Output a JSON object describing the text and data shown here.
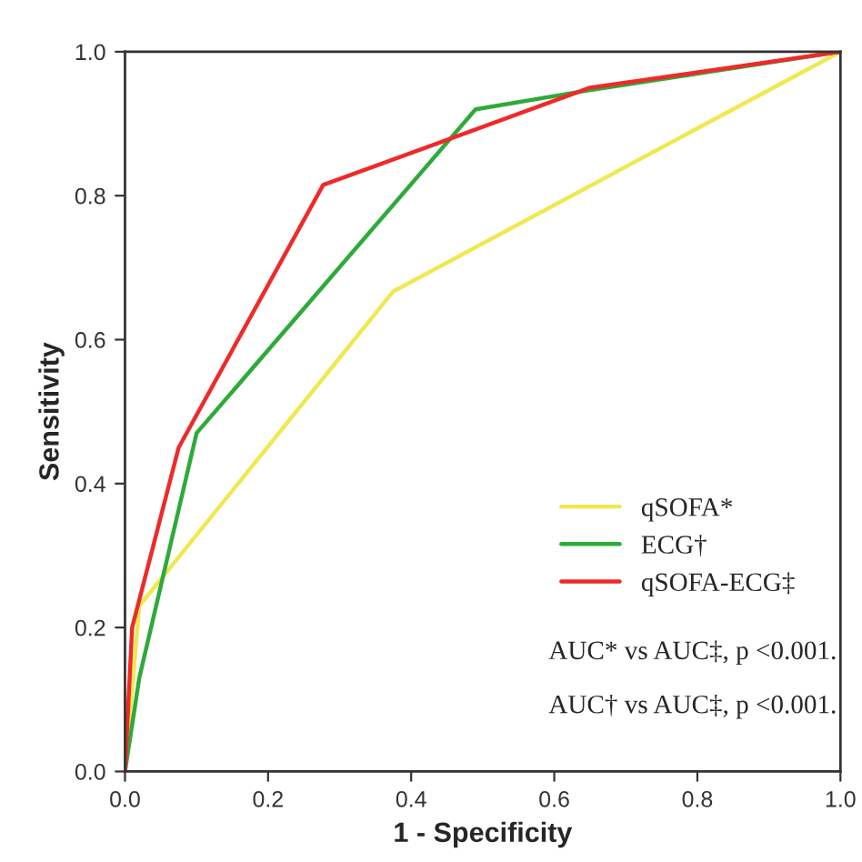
{
  "chart_data": {
    "type": "line",
    "xlabel": "1 - Specificity",
    "ylabel": "Sensitivity",
    "xlim": [
      0,
      1
    ],
    "ylim": [
      0,
      1
    ],
    "xticks": [
      {
        "value": 0,
        "label": "0.0"
      },
      {
        "value": 0.2,
        "label": "0.2"
      },
      {
        "value": 0.4,
        "label": "0.4"
      },
      {
        "value": 0.6,
        "label": "0.6"
      },
      {
        "value": 0.8,
        "label": "0.8"
      },
      {
        "value": 1,
        "label": "1.0"
      }
    ],
    "yticks": [
      {
        "value": 0,
        "label": "0.0"
      },
      {
        "value": 0.2,
        "label": "0.2"
      },
      {
        "value": 0.4,
        "label": "0.4"
      },
      {
        "value": 0.6,
        "label": "0.6"
      },
      {
        "value": 0.8,
        "label": "0.8"
      },
      {
        "value": 1,
        "label": "1.0"
      }
    ],
    "grid": false,
    "legend": "bottom right",
    "marker": "none",
    "line_style": "solid",
    "series": [
      {
        "name": "qSOFA*",
        "color": "#f0e850",
        "x": [
          0,
          0.02,
          0.375,
          1
        ],
        "values": [
          0,
          0.23,
          0.667,
          1
        ]
      },
      {
        "name": "ECG†",
        "color": "#2eaa3a",
        "x": [
          0,
          0.02,
          0.1,
          0.49,
          0.64,
          1
        ],
        "values": [
          0,
          0.13,
          0.47,
          0.92,
          0.945,
          1
        ]
      },
      {
        "name": "qSOFA-ECG‡",
        "color": "#ee2a2a",
        "x": [
          0,
          0.01,
          0.075,
          0.277,
          0.65,
          1
        ],
        "values": [
          0,
          0.2,
          0.45,
          0.815,
          0.95,
          1
        ]
      }
    ],
    "annotations": [
      "AUC* vs AUC‡, p <0.001.",
      "AUC† vs AUC‡, p <0.001."
    ]
  }
}
